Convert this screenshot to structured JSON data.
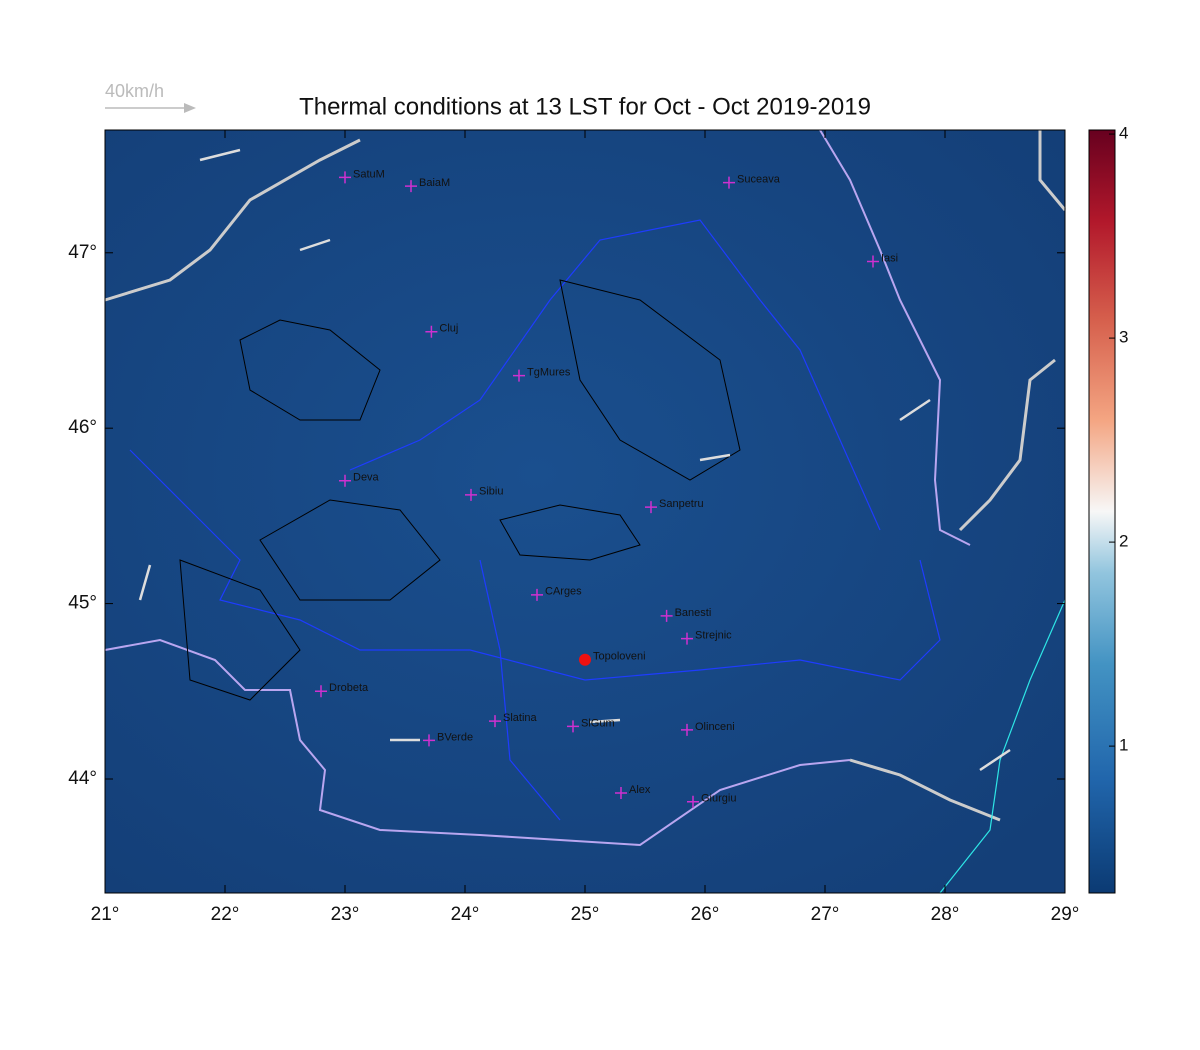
{
  "chart_data": {
    "type": "map",
    "title": "Thermal conditions at 13 LST for Oct - Oct  2019-2019",
    "wind_scale_label": "40km/h",
    "xlim": [
      21,
      29
    ],
    "ylim": [
      43.35,
      47.7
    ],
    "xticks": [
      {
        "value": 21,
        "label": "21°"
      },
      {
        "value": 22,
        "label": "22°"
      },
      {
        "value": 23,
        "label": "23°"
      },
      {
        "value": 24,
        "label": "24°"
      },
      {
        "value": 25,
        "label": "25°"
      },
      {
        "value": 26,
        "label": "26°"
      },
      {
        "value": 27,
        "label": "27°"
      },
      {
        "value": 28,
        "label": "28°"
      },
      {
        "value": 29,
        "label": "29°"
      }
    ],
    "yticks": [
      {
        "value": 44,
        "label": "44°"
      },
      {
        "value": 45,
        "label": "45°"
      },
      {
        "value": 46,
        "label": "46°"
      },
      {
        "value": 47,
        "label": "47°"
      }
    ],
    "colorbar": {
      "clim": [
        0.28,
        4.02
      ],
      "ticks": [
        1,
        2,
        3,
        4
      ]
    },
    "marker_color": "#d030d0",
    "highlight_color": "#ee1111",
    "cities": [
      {
        "name": "SatuM",
        "lon": 23.0,
        "lat": 47.43
      },
      {
        "name": "BaiaM",
        "lon": 23.55,
        "lat": 47.38
      },
      {
        "name": "Suceava",
        "lon": 26.2,
        "lat": 47.4
      },
      {
        "name": "Iasi",
        "lon": 27.4,
        "lat": 46.95
      },
      {
        "name": "Cluj",
        "lon": 23.72,
        "lat": 46.55
      },
      {
        "name": "TgMures",
        "lon": 24.45,
        "lat": 46.3
      },
      {
        "name": "Deva",
        "lon": 23.0,
        "lat": 45.7
      },
      {
        "name": "Sibiu",
        "lon": 24.05,
        "lat": 45.62
      },
      {
        "name": "Sanpetru",
        "lon": 25.55,
        "lat": 45.55
      },
      {
        "name": "CArges",
        "lon": 24.6,
        "lat": 45.05
      },
      {
        "name": "Banesti",
        "lon": 25.68,
        "lat": 44.93
      },
      {
        "name": "Strejnic",
        "lon": 25.85,
        "lat": 44.8
      },
      {
        "name": "Topoloveni",
        "lon": 25.0,
        "lat": 44.68,
        "highlight": true
      },
      {
        "name": "Drobeta",
        "lon": 22.8,
        "lat": 44.5
      },
      {
        "name": "Slatina",
        "lon": 24.25,
        "lat": 44.33
      },
      {
        "name": "SlGum",
        "lon": 24.9,
        "lat": 44.3
      },
      {
        "name": "Olinceni",
        "lon": 25.85,
        "lat": 44.28
      },
      {
        "name": "BVerde",
        "lon": 23.7,
        "lat": 44.22
      },
      {
        "name": "Alex",
        "lon": 25.3,
        "lat": 43.92
      },
      {
        "name": "Giurgiu",
        "lon": 25.9,
        "lat": 43.87
      }
    ]
  }
}
